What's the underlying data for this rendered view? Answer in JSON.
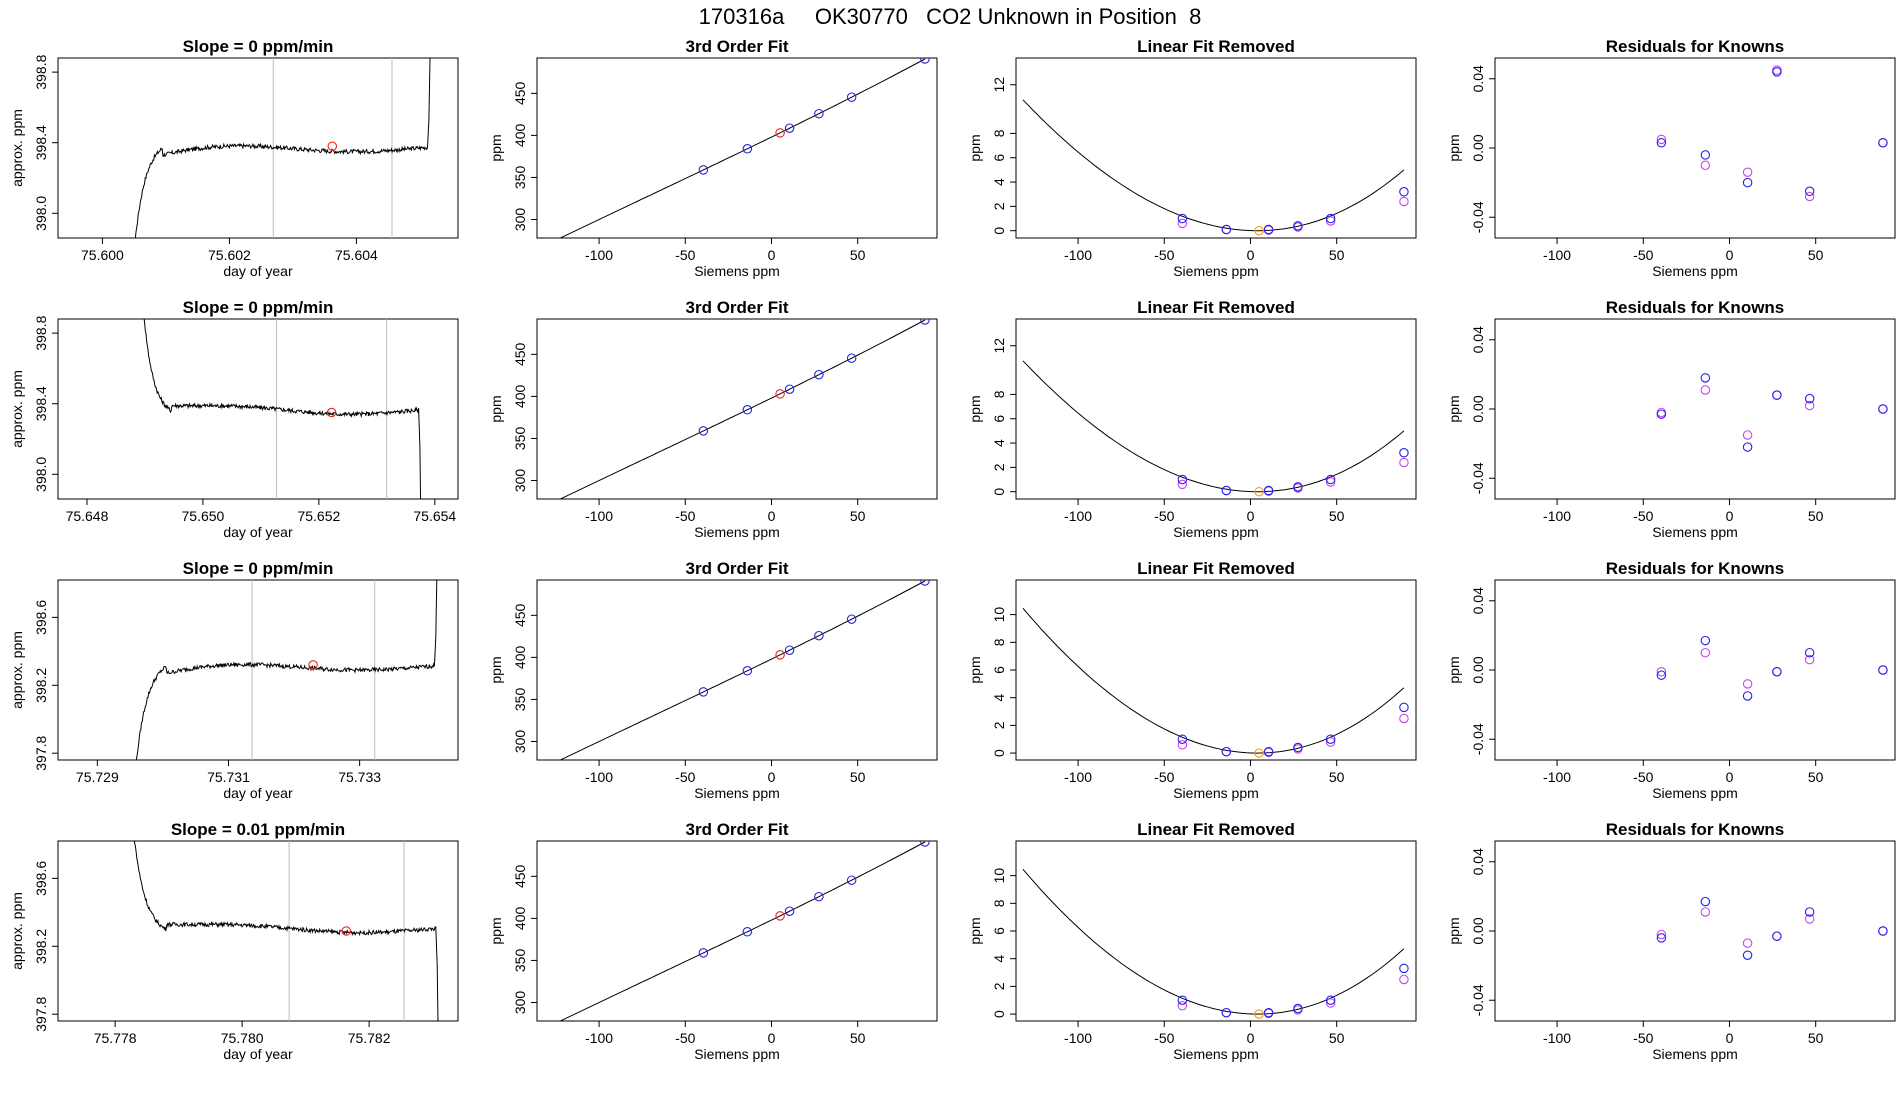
{
  "page": {
    "title": "170316a     OK30770   CO2 Unknown in Position  8"
  },
  "common": {
    "fit_title": "3rd Order Fit",
    "linres_title": "Linear Fit Removed",
    "resid_title": "Residuals for Knowns",
    "ts_xlabel": "day of year",
    "ts_ylabel": "approx. ppm",
    "siemens_xlabel": "Siemens ppm",
    "ppm_ylabel": "ppm",
    "colors": {
      "curve": "#000000",
      "known": "#2222ee",
      "unknown": "#ee2222",
      "known_alt": "#cc44ee",
      "unknown_alt": "#ff9900",
      "window": "#bbbbbb"
    }
  },
  "chart_data": [
    {
      "row": 1,
      "timeseries": {
        "type": "line",
        "title": "Slope =  0  ppm/min",
        "xlim": [
          75.5993,
          75.6056
        ],
        "ylim": [
          397.86,
          398.88
        ],
        "xticks": [
          75.6,
          75.602,
          75.604
        ],
        "xtick_labels": [
          "75.600",
          "75.602",
          "75.604"
        ],
        "yticks": [
          398.0,
          398.4,
          398.8
        ],
        "ytick_labels": [
          "398.0",
          "398.4",
          "398.8"
        ],
        "window": [
          75.60269,
          75.60456
        ],
        "marker": {
          "x": 75.60362,
          "y": 398.38
        },
        "trace": {
          "type": "rise",
          "t0": 75.60044,
          "t1": 75.60095,
          "t_end": 75.60512,
          "start": 397.55,
          "level": 398.37,
          "spike_to": 399.0,
          "noise": 0.012
        }
      },
      "fit": {
        "type": "line+scatter",
        "xlim": [
          -136,
          96
        ],
        "ylim": [
          278,
          492
        ],
        "xticks": [
          -100,
          -50,
          0,
          50
        ],
        "xtick_labels": [
          "-100",
          "-50",
          "0",
          "50"
        ],
        "yticks": [
          300,
          350,
          400,
          450
        ],
        "ytick_labels": [
          "300",
          "350",
          "400",
          "450"
        ],
        "curve_x": [
          -130,
          89
        ],
        "coef": [
          397.99,
          1.0,
          0.00035,
          1.5e-06
        ],
        "knowns_x": [
          -39.5,
          -14.0,
          10.5,
          27.5,
          46.5,
          89.0
        ],
        "unknown_x": 5.0
      },
      "linres": {
        "type": "line+scatter",
        "xlim": [
          -136,
          96
        ],
        "ylim": [
          -0.6,
          14.2
        ],
        "xticks": [
          -100,
          -50,
          0,
          50
        ],
        "xtick_labels": [
          "-100",
          "-50",
          "0",
          "50"
        ],
        "yticks": [
          0,
          2,
          4,
          6,
          8,
          12
        ],
        "ytick_labels": [
          "0",
          "2",
          "4",
          "6",
          "8",
          "12"
        ],
        "curve": {
          "x0": 4.0,
          "a": 0.00065,
          "b": 5e-07
        },
        "curve_x": [
          -132,
          89
        ],
        "blue": [
          [
            -39.5,
            1.0
          ],
          [
            -14.0,
            0.1
          ],
          [
            10.5,
            0.1
          ],
          [
            27.5,
            0.4
          ],
          [
            46.5,
            1.0
          ],
          [
            89.0,
            3.2
          ]
        ],
        "magenta": [
          [
            -39.5,
            0.6
          ],
          [
            -14.0,
            0.1
          ],
          [
            10.5,
            0.05
          ],
          [
            27.5,
            0.3
          ],
          [
            46.5,
            0.8
          ],
          [
            89.0,
            2.4
          ]
        ],
        "unknown": [
          5.0,
          0.0
        ]
      },
      "resid": {
        "type": "scatter",
        "xlim": [
          -136,
          96
        ],
        "ylim": [
          -0.052,
          0.052
        ],
        "xticks": [
          -100,
          -50,
          0,
          50
        ],
        "xtick_labels": [
          "-100",
          "-50",
          "0",
          "50"
        ],
        "yticks": [
          -0.04,
          0.0,
          0.04
        ],
        "ytick_labels": [
          "-0.04",
          "0.00",
          "0.04"
        ],
        "blue": [
          [
            -39.5,
            0.003
          ],
          [
            -14.0,
            -0.004
          ],
          [
            10.5,
            -0.02
          ],
          [
            27.5,
            0.044
          ],
          [
            46.5,
            -0.025
          ],
          [
            89.0,
            0.003
          ]
        ],
        "magenta": [
          [
            -39.5,
            0.005
          ],
          [
            -14.0,
            -0.01
          ],
          [
            10.5,
            -0.014
          ],
          [
            27.5,
            0.045
          ],
          [
            46.5,
            -0.028
          ],
          [
            89.0,
            0.003
          ]
        ]
      }
    },
    {
      "row": 2,
      "timeseries": {
        "type": "line",
        "title": "Slope =  0  ppm/min",
        "xlim": [
          75.6475,
          75.6544
        ],
        "ylim": [
          397.86,
          398.88
        ],
        "xticks": [
          75.648,
          75.65,
          75.652,
          75.654
        ],
        "xtick_labels": [
          "75.648",
          "75.650",
          "75.652",
          "75.654"
        ],
        "yticks": [
          398.0,
          398.4,
          398.8
        ],
        "ytick_labels": [
          "398.0",
          "398.4",
          "398.8"
        ],
        "window": [
          75.65127,
          75.65317
        ],
        "marker": {
          "x": 75.65222,
          "y": 398.35
        },
        "trace": {
          "type": "fall",
          "t0": 75.64895,
          "t1": 75.64945,
          "t_end": 75.65372,
          "start": 399.0,
          "level": 398.36,
          "spike_to": 397.55,
          "noise": 0.012
        }
      },
      "fit": {
        "type": "line+scatter",
        "xlim": [
          -136,
          96
        ],
        "ylim": [
          278,
          492
        ],
        "xticks": [
          -100,
          -50,
          0,
          50
        ],
        "xtick_labels": [
          "-100",
          "-50",
          "0",
          "50"
        ],
        "yticks": [
          300,
          350,
          400,
          450
        ],
        "ytick_labels": [
          "300",
          "350",
          "400",
          "450"
        ],
        "curve_x": [
          -130,
          89
        ],
        "coef": [
          397.99,
          1.0,
          0.00035,
          1.5e-06
        ],
        "knowns_x": [
          -39.5,
          -14.0,
          10.5,
          27.5,
          46.5,
          89.0
        ],
        "unknown_x": 5.0
      },
      "linres": {
        "type": "line+scatter",
        "xlim": [
          -136,
          96
        ],
        "ylim": [
          -0.6,
          14.2
        ],
        "xticks": [
          -100,
          -50,
          0,
          50
        ],
        "xtick_labels": [
          "-100",
          "-50",
          "0",
          "50"
        ],
        "yticks": [
          0,
          2,
          4,
          6,
          8,
          12
        ],
        "ytick_labels": [
          "0",
          "2",
          "4",
          "6",
          "8",
          "12"
        ],
        "curve": {
          "x0": 4.0,
          "a": 0.00065,
          "b": 5e-07
        },
        "curve_x": [
          -132,
          89
        ],
        "blue": [
          [
            -39.5,
            1.0
          ],
          [
            -14.0,
            0.1
          ],
          [
            10.5,
            0.1
          ],
          [
            27.5,
            0.4
          ],
          [
            46.5,
            1.0
          ],
          [
            89.0,
            3.2
          ]
        ],
        "magenta": [
          [
            -39.5,
            0.6
          ],
          [
            -14.0,
            0.1
          ],
          [
            10.5,
            0.05
          ],
          [
            27.5,
            0.3
          ],
          [
            46.5,
            0.8
          ],
          [
            89.0,
            2.4
          ]
        ],
        "unknown": [
          5.0,
          0.0
        ]
      },
      "resid": {
        "type": "scatter",
        "xlim": [
          -136,
          96
        ],
        "ylim": [
          -0.052,
          0.052
        ],
        "xticks": [
          -100,
          -50,
          0,
          50
        ],
        "xtick_labels": [
          "-100",
          "-50",
          "0",
          "50"
        ],
        "yticks": [
          -0.04,
          0.0,
          0.04
        ],
        "ytick_labels": [
          "-0.04",
          "0.00",
          "0.04"
        ],
        "blue": [
          [
            -39.5,
            -0.003
          ],
          [
            -14.0,
            0.018
          ],
          [
            10.5,
            -0.022
          ],
          [
            27.5,
            0.008
          ],
          [
            46.5,
            0.006
          ],
          [
            89.0,
            0.0
          ]
        ],
        "magenta": [
          [
            -39.5,
            -0.002
          ],
          [
            -14.0,
            0.011
          ],
          [
            10.5,
            -0.015
          ],
          [
            27.5,
            0.008
          ],
          [
            46.5,
            0.002
          ],
          [
            89.0,
            0.0
          ]
        ]
      }
    },
    {
      "row": 3,
      "timeseries": {
        "type": "line",
        "title": "Slope =  0  ppm/min",
        "xlim": [
          75.7284,
          75.7345
        ],
        "ylim": [
          397.76,
          398.82
        ],
        "xticks": [
          75.729,
          75.731,
          75.733
        ],
        "xtick_labels": [
          "75.729",
          "75.731",
          "75.733"
        ],
        "yticks": [
          397.8,
          398.2,
          398.6
        ],
        "ytick_labels": [
          "397.8",
          "398.2",
          "398.6"
        ],
        "window": [
          75.73136,
          75.73323
        ],
        "marker": {
          "x": 75.73229,
          "y": 398.32
        },
        "trace": {
          "type": "rise",
          "t0": 75.72952,
          "t1": 75.73005,
          "t_end": 75.73414,
          "start": 397.45,
          "level": 398.31,
          "spike_to": 399.0,
          "noise": 0.012
        }
      },
      "fit": {
        "type": "line+scatter",
        "xlim": [
          -136,
          96
        ],
        "ylim": [
          278,
          492
        ],
        "xticks": [
          -100,
          -50,
          0,
          50
        ],
        "xtick_labels": [
          "-100",
          "-50",
          "0",
          "50"
        ],
        "yticks": [
          300,
          350,
          400,
          450
        ],
        "ytick_labels": [
          "300",
          "350",
          "400",
          "450"
        ],
        "curve_x": [
          -130,
          89
        ],
        "coef": [
          397.99,
          1.0,
          0.00035,
          1.5e-06
        ],
        "knowns_x": [
          -39.5,
          -14.0,
          10.5,
          27.5,
          46.5,
          89.0
        ],
        "unknown_x": 5.0
      },
      "linres": {
        "type": "line+scatter",
        "xlim": [
          -136,
          96
        ],
        "ylim": [
          -0.5,
          12.5
        ],
        "xticks": [
          -100,
          -50,
          0,
          50
        ],
        "xtick_labels": [
          "-100",
          "-50",
          "0",
          "50"
        ],
        "yticks": [
          0,
          2,
          4,
          6,
          8,
          10
        ],
        "ytick_labels": [
          "0",
          "2",
          "4",
          "6",
          "8",
          "10"
        ],
        "curve": {
          "x0": 4.0,
          "a": 0.00062,
          "b": 4e-07
        },
        "curve_x": [
          -132,
          89
        ],
        "blue": [
          [
            -39.5,
            1.0
          ],
          [
            -14.0,
            0.1
          ],
          [
            10.5,
            0.1
          ],
          [
            27.5,
            0.4
          ],
          [
            46.5,
            1.0
          ],
          [
            89.0,
            3.3
          ]
        ],
        "magenta": [
          [
            -39.5,
            0.6
          ],
          [
            -14.0,
            0.1
          ],
          [
            10.5,
            0.05
          ],
          [
            27.5,
            0.3
          ],
          [
            46.5,
            0.8
          ],
          [
            89.0,
            2.5
          ]
        ],
        "unknown": [
          5.0,
          0.0
        ]
      },
      "resid": {
        "type": "scatter",
        "xlim": [
          -136,
          96
        ],
        "ylim": [
          -0.052,
          0.052
        ],
        "xticks": [
          -100,
          -50,
          0,
          50
        ],
        "xtick_labels": [
          "-100",
          "-50",
          "0",
          "50"
        ],
        "yticks": [
          -0.04,
          0.0,
          0.04
        ],
        "ytick_labels": [
          "-0.04",
          "0.00",
          "0.04"
        ],
        "blue": [
          [
            -39.5,
            -0.003
          ],
          [
            -14.0,
            0.017
          ],
          [
            10.5,
            -0.015
          ],
          [
            27.5,
            -0.001
          ],
          [
            46.5,
            0.01
          ],
          [
            89.0,
            0.0
          ]
        ],
        "magenta": [
          [
            -39.5,
            -0.001
          ],
          [
            -14.0,
            0.01
          ],
          [
            10.5,
            -0.008
          ],
          [
            27.5,
            -0.001
          ],
          [
            46.5,
            0.006
          ],
          [
            89.0,
            0.0
          ]
        ]
      }
    },
    {
      "row": 4,
      "timeseries": {
        "type": "line",
        "title": "Slope =  0.01  ppm/min",
        "xlim": [
          75.7771,
          75.7834
        ],
        "ylim": [
          397.76,
          398.82
        ],
        "xticks": [
          75.778,
          75.78,
          75.782
        ],
        "xtick_labels": [
          "75.778",
          "75.780",
          "75.782"
        ],
        "yticks": [
          397.8,
          398.2,
          398.6
        ],
        "ytick_labels": [
          "397.8",
          "398.2",
          "398.6"
        ],
        "window": [
          75.78074,
          75.78255
        ],
        "marker": {
          "x": 75.78164,
          "y": 398.29
        },
        "trace": {
          "type": "fall",
          "t0": 75.77825,
          "t1": 75.7788,
          "t_end": 75.78305,
          "start": 399.0,
          "level": 398.3,
          "spike_to": 397.45,
          "noise": 0.012
        }
      },
      "fit": {
        "type": "line+scatter",
        "xlim": [
          -136,
          96
        ],
        "ylim": [
          278,
          492
        ],
        "xticks": [
          -100,
          -50,
          0,
          50
        ],
        "xtick_labels": [
          "-100",
          "-50",
          "0",
          "50"
        ],
        "yticks": [
          300,
          350,
          400,
          450
        ],
        "ytick_labels": [
          "300",
          "350",
          "400",
          "450"
        ],
        "curve_x": [
          -130,
          89
        ],
        "coef": [
          397.99,
          1.0,
          0.00035,
          1.5e-06
        ],
        "knowns_x": [
          -39.5,
          -14.0,
          10.5,
          27.5,
          46.5,
          89.0
        ],
        "unknown_x": 5.0
      },
      "linres": {
        "type": "line+scatter",
        "xlim": [
          -136,
          96
        ],
        "ylim": [
          -0.5,
          12.5
        ],
        "xticks": [
          -100,
          -50,
          0,
          50
        ],
        "xtick_labels": [
          "-100",
          "-50",
          "0",
          "50"
        ],
        "yticks": [
          0,
          2,
          4,
          6,
          8,
          10
        ],
        "ytick_labels": [
          "0",
          "2",
          "4",
          "6",
          "8",
          "10"
        ],
        "curve": {
          "x0": 4.0,
          "a": 0.00062,
          "b": 4e-07
        },
        "curve_x": [
          -132,
          89
        ],
        "blue": [
          [
            -39.5,
            1.0
          ],
          [
            -14.0,
            0.1
          ],
          [
            10.5,
            0.1
          ],
          [
            27.5,
            0.4
          ],
          [
            46.5,
            1.0
          ],
          [
            89.0,
            3.3
          ]
        ],
        "magenta": [
          [
            -39.5,
            0.6
          ],
          [
            -14.0,
            0.1
          ],
          [
            10.5,
            0.05
          ],
          [
            27.5,
            0.3
          ],
          [
            46.5,
            0.8
          ],
          [
            89.0,
            2.5
          ]
        ],
        "unknown": [
          5.0,
          0.0
        ]
      },
      "resid": {
        "type": "scatter",
        "xlim": [
          -136,
          96
        ],
        "ylim": [
          -0.052,
          0.052
        ],
        "xticks": [
          -100,
          -50,
          0,
          50
        ],
        "xtick_labels": [
          "-100",
          "-50",
          "0",
          "50"
        ],
        "yticks": [
          -0.04,
          0.0,
          0.04
        ],
        "ytick_labels": [
          "-0.04",
          "0.00",
          "0.04"
        ],
        "blue": [
          [
            -39.5,
            -0.004
          ],
          [
            -14.0,
            0.017
          ],
          [
            10.5,
            -0.014
          ],
          [
            27.5,
            -0.003
          ],
          [
            46.5,
            0.011
          ],
          [
            89.0,
            0.0
          ]
        ],
        "magenta": [
          [
            -39.5,
            -0.002
          ],
          [
            -14.0,
            0.011
          ],
          [
            10.5,
            -0.007
          ],
          [
            27.5,
            -0.003
          ],
          [
            46.5,
            0.007
          ],
          [
            89.0,
            0.0
          ]
        ]
      }
    }
  ]
}
